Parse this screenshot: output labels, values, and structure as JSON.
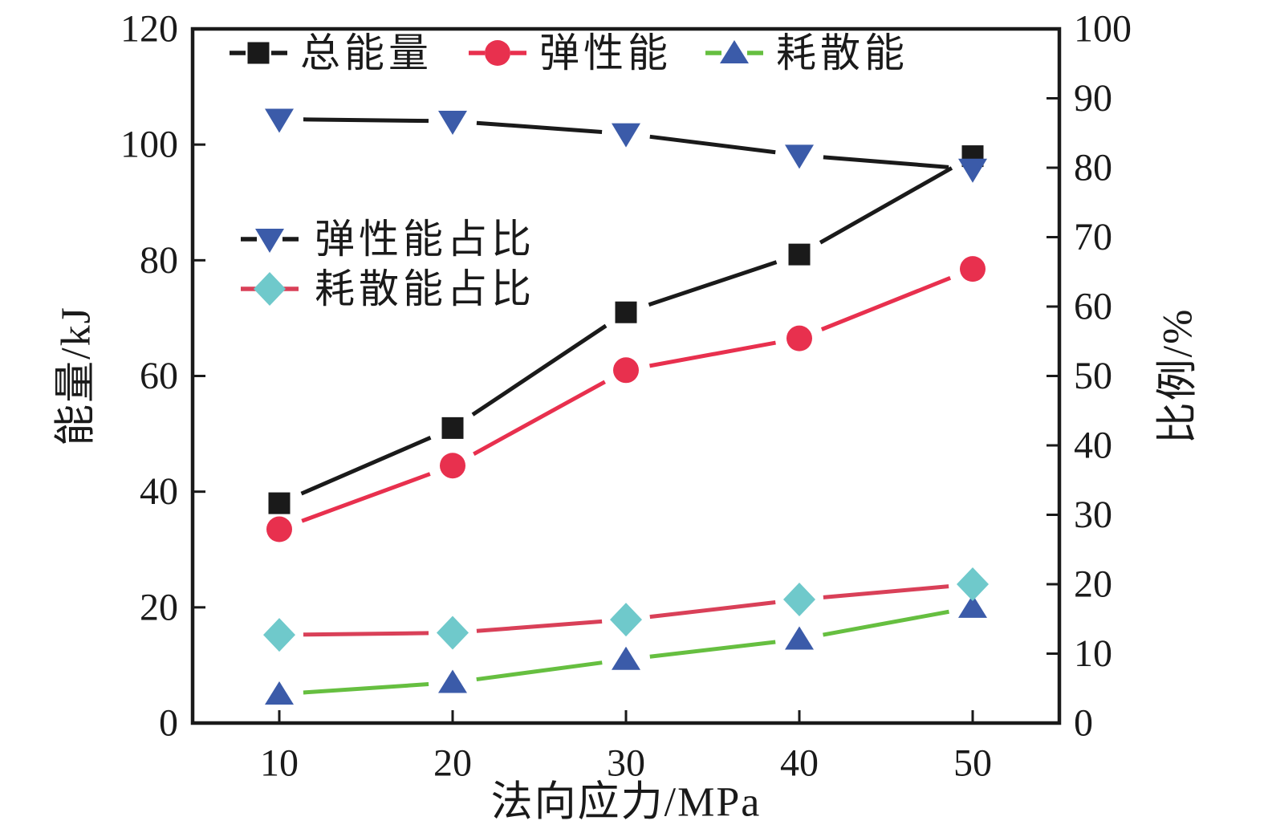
{
  "chart_data": {
    "type": "line",
    "title": "",
    "x": [
      10,
      20,
      30,
      40,
      50
    ],
    "xlabel": "法向应力/MPa",
    "ylabel_left": "能量/kJ",
    "ylabel_right": "比例/%",
    "xlim": [
      5,
      55
    ],
    "ylim_left": [
      0,
      120
    ],
    "ylim_right": [
      0,
      100
    ],
    "xticks": [
      10,
      20,
      30,
      40,
      50
    ],
    "yticks_left": [
      0,
      20,
      40,
      60,
      80,
      100,
      120
    ],
    "yticks_right": [
      0,
      10,
      20,
      30,
      40,
      50,
      60,
      70,
      80,
      90,
      100
    ],
    "grid": false,
    "legend_top_entries": [
      "总能量",
      "弹性能",
      "耗散能"
    ],
    "legend_inner_entries": [
      "弹性能占比",
      "耗散能占比"
    ],
    "frame_color": "#1a1a1a",
    "series": [
      {
        "key": "total-energy",
        "name": "总能量",
        "axis": "left",
        "values": [
          38,
          51,
          71,
          81,
          98
        ],
        "line_color": "#1a1a1a",
        "marker": "square",
        "marker_color": "#1a1a1a",
        "legend": "top"
      },
      {
        "key": "elastic-energy",
        "name": "弹性能",
        "axis": "left",
        "values": [
          33.5,
          44.5,
          61,
          66.5,
          78.5
        ],
        "line_color": "#e8304e",
        "marker": "circle",
        "marker_color": "#e8304e",
        "legend": "top"
      },
      {
        "key": "dissipated-energy",
        "name": "耗散能",
        "axis": "left",
        "values": [
          5,
          7,
          11,
          14.5,
          20
        ],
        "line_color": "#66bf40",
        "marker": "triangle-up",
        "marker_color": "#3b5ba9",
        "legend": "top"
      },
      {
        "key": "elastic-energy-ratio",
        "name": "弹性能占比",
        "axis": "right",
        "values": [
          87,
          86.7,
          84.9,
          81.8,
          79.8
        ],
        "line_color": "#1a1a1a",
        "marker": "triangle-down",
        "marker_color": "#3b5ba9",
        "legend": "inner"
      },
      {
        "key": "dissipated-energy-ratio",
        "name": "耗散能占比",
        "axis": "right",
        "values": [
          12.7,
          13,
          14.9,
          17.8,
          20
        ],
        "line_color": "#d94058",
        "marker": "diamond",
        "marker_color": "#6fc9cb",
        "legend": "inner"
      }
    ]
  }
}
